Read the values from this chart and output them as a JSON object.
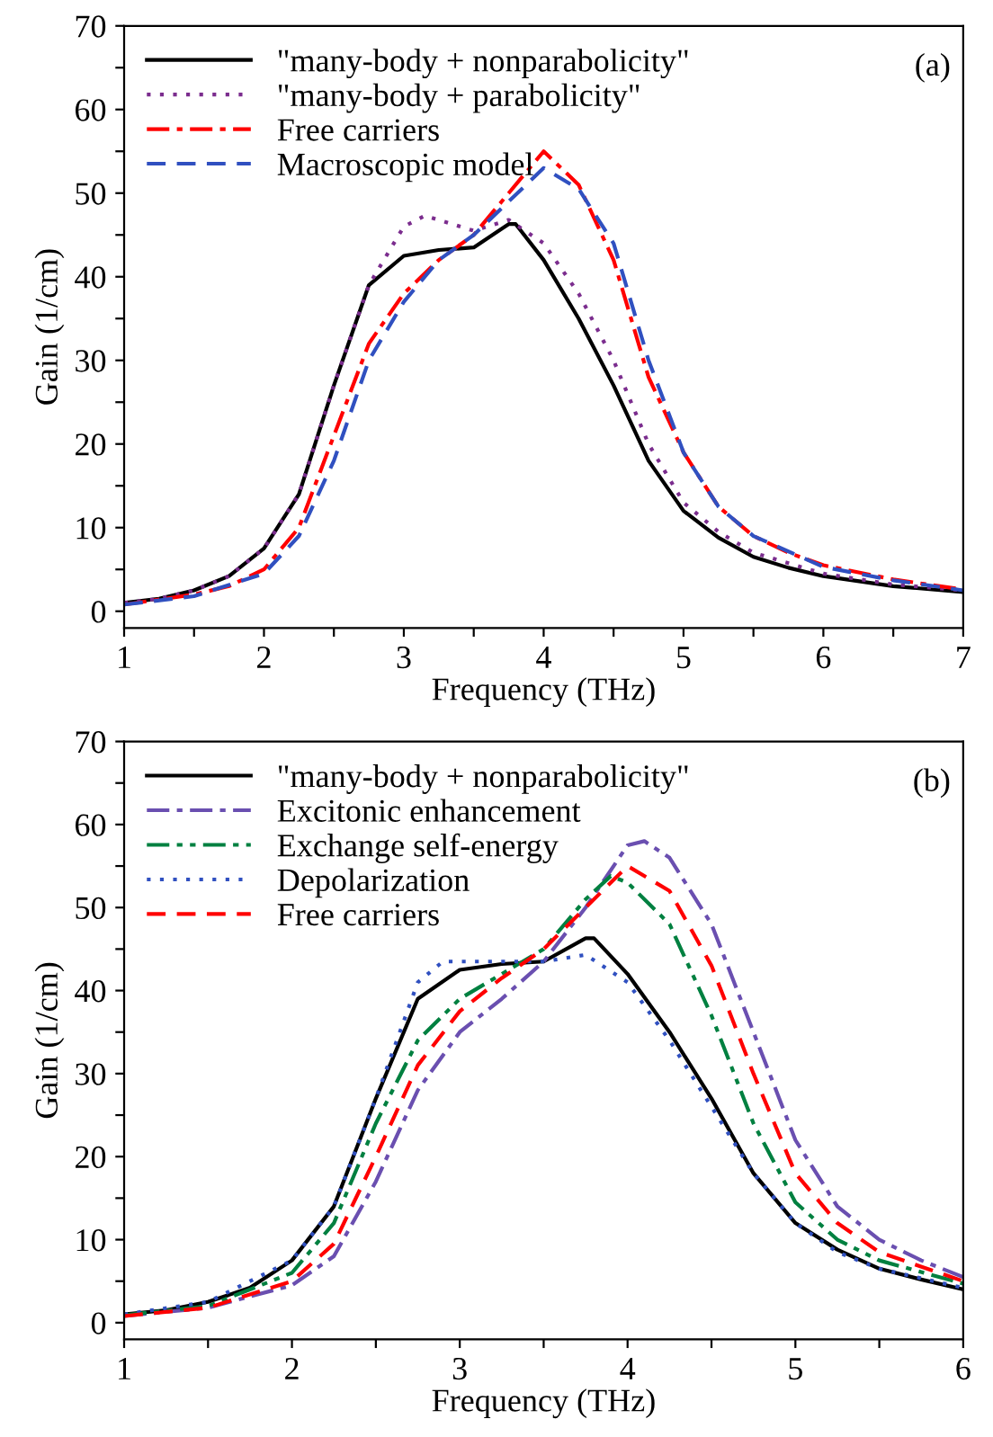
{
  "chart_data": [
    {
      "type": "line",
      "xlabel": "Frequency (THz)",
      "ylabel": "Gain (1/cm)",
      "annotations": [
        "(a)"
      ],
      "legend": "top left",
      "grid": false,
      "xlim": [
        1,
        7
      ],
      "xticks": [
        1,
        {
          "value": 1.5,
          "label": null
        },
        2,
        {
          "value": 2.5,
          "label": null
        },
        3,
        {
          "value": 3.5,
          "label": null
        },
        4,
        {
          "value": 4.5,
          "label": null
        },
        5,
        {
          "value": 5.5,
          "label": null
        },
        6,
        {
          "value": 6.5,
          "label": null
        },
        7
      ],
      "ylim": [
        -2,
        70
      ],
      "yticks": [
        0,
        {
          "value": 5,
          "label": null
        },
        10,
        {
          "value": 15,
          "label": null
        },
        20,
        {
          "value": 25,
          "label": null
        },
        30,
        {
          "value": 35,
          "label": null
        },
        40,
        {
          "value": 45,
          "label": null
        },
        50,
        {
          "value": 55,
          "label": null
        },
        60,
        {
          "value": 65,
          "label": null
        },
        70
      ],
      "series": [
        {
          "name": "\"many-body + nonparabolicity\"",
          "color": "#000000",
          "line_style": "solid",
          "x": [
            1,
            1.25,
            1.5,
            1.75,
            2,
            2.25,
            2.5,
            2.75,
            3,
            3.25,
            3.5,
            3.75,
            3.8,
            4,
            4.25,
            4.5,
            4.75,
            5,
            5.25,
            5.5,
            5.75,
            6,
            6.5,
            7
          ],
          "values": [
            1.0,
            1.5,
            2.5,
            4.2,
            7.5,
            14,
            27,
            39,
            42.5,
            43.2,
            43.5,
            46.3,
            46.3,
            42,
            35,
            27,
            18,
            12,
            8.8,
            6.5,
            5.2,
            4.2,
            3.0,
            2.3
          ]
        },
        {
          "name": "\"many-body + parabolicity\"",
          "color": "#7b2d8e",
          "line_style": "dotted",
          "x": [
            1,
            1.25,
            1.5,
            1.75,
            2,
            2.25,
            2.5,
            2.75,
            3,
            3.15,
            3.5,
            3.75,
            4,
            4.25,
            4.5,
            4.75,
            5,
            5.25,
            5.5,
            6,
            6.5,
            7
          ],
          "values": [
            1.0,
            1.5,
            2.5,
            4.2,
            7.5,
            14,
            27,
            39,
            46,
            47.3,
            45.5,
            46.8,
            44,
            38,
            30,
            20,
            13,
            9.5,
            7,
            4.5,
            3.2,
            2.5
          ]
        },
        {
          "name": "Free carriers",
          "color": "#ff0000",
          "line_style": "dashdot",
          "x": [
            1,
            1.5,
            1.75,
            2,
            2.25,
            2.5,
            2.75,
            3,
            3.25,
            3.5,
            3.75,
            4,
            4.25,
            4.5,
            4.75,
            5,
            5.25,
            5.5,
            5.75,
            6,
            6.5,
            7
          ],
          "values": [
            0.8,
            2,
            3,
            5,
            10,
            21,
            32,
            38,
            42,
            45,
            50,
            55,
            51,
            42,
            28,
            19,
            12.5,
            9,
            7,
            5.5,
            3.8,
            2.6
          ]
        },
        {
          "name": "Macroscopic model",
          "color": "#3050c0",
          "line_style": "dashed",
          "x": [
            1,
            1.5,
            2,
            2.25,
            2.5,
            2.75,
            3,
            3.25,
            3.5,
            3.75,
            4,
            4.25,
            4.5,
            4.75,
            5,
            5.25,
            5.5,
            6,
            6.5,
            7
          ],
          "values": [
            0.8,
            1.8,
            4.5,
            9,
            18,
            30,
            37,
            42,
            45,
            49,
            53,
            50.5,
            44,
            30,
            19,
            12.5,
            9,
            5.3,
            3.7,
            2.5
          ]
        }
      ]
    },
    {
      "type": "line",
      "xlabel": "Frequency (THz)",
      "ylabel": "Gain (1/cm)",
      "annotations": [
        "(b)"
      ],
      "legend": "top left",
      "grid": false,
      "xlim": [
        1,
        6
      ],
      "xticks": [
        1,
        {
          "value": 1.5,
          "label": null
        },
        2,
        {
          "value": 2.5,
          "label": null
        },
        3,
        {
          "value": 3.5,
          "label": null
        },
        4,
        {
          "value": 4.5,
          "label": null
        },
        5,
        {
          "value": 5.5,
          "label": null
        },
        6
      ],
      "ylim": [
        -2,
        70
      ],
      "yticks": [
        0,
        {
          "value": 5,
          "label": null
        },
        10,
        {
          "value": 15,
          "label": null
        },
        20,
        {
          "value": 25,
          "label": null
        },
        30,
        {
          "value": 35,
          "label": null
        },
        40,
        {
          "value": 45,
          "label": null
        },
        50,
        {
          "value": 55,
          "label": null
        },
        60,
        {
          "value": 65,
          "label": null
        },
        70
      ],
      "series": [
        {
          "name": "\"many-body + nonparabolicity\"",
          "color": "#000000",
          "line_style": "solid",
          "x": [
            1,
            1.25,
            1.5,
            1.75,
            2,
            2.25,
            2.5,
            2.75,
            3,
            3.25,
            3.5,
            3.75,
            3.8,
            4,
            4.25,
            4.5,
            4.75,
            5,
            5.25,
            5.5,
            5.75,
            6
          ],
          "values": [
            1.0,
            1.5,
            2.5,
            4.2,
            7.5,
            14,
            27,
            39,
            42.5,
            43.2,
            43.5,
            46.3,
            46.3,
            42,
            35,
            27,
            18,
            12,
            8.8,
            6.5,
            5.2,
            4.0
          ]
        },
        {
          "name": "Excitonic enhancement",
          "color": "#6a4fb0",
          "line_style": "dashdot",
          "x": [
            1,
            1.5,
            2,
            2.25,
            2.5,
            2.75,
            3,
            3.25,
            3.5,
            3.75,
            4,
            4.1,
            4.25,
            4.5,
            4.75,
            5,
            5.25,
            5.5,
            5.75,
            6
          ],
          "values": [
            0.8,
            1.8,
            4.5,
            8,
            17,
            28,
            35,
            39,
            43.5,
            50,
            57.5,
            58,
            56,
            48,
            35,
            22,
            14,
            10,
            7.5,
            5.5
          ]
        },
        {
          "name": "Exchange self-energy",
          "color": "#008040",
          "line_style": "dashdotdot",
          "x": [
            1,
            1.5,
            2,
            2.25,
            2.5,
            2.75,
            3,
            3.25,
            3.5,
            3.75,
            3.9,
            4,
            4.25,
            4.5,
            4.75,
            5,
            5.25,
            5.5,
            6
          ],
          "values": [
            0.9,
            2,
            6,
            12,
            24,
            34,
            39,
            42,
            45,
            51,
            53.8,
            53,
            48,
            37,
            24,
            14.5,
            10,
            7.5,
            4.7
          ]
        },
        {
          "name": "Depolarization",
          "color": "#3050c0",
          "line_style": "dotted",
          "x": [
            1,
            1.5,
            2,
            2.25,
            2.5,
            2.75,
            2.9,
            3.25,
            3.5,
            3.75,
            4,
            4.25,
            4.5,
            4.75,
            5,
            5.25,
            5.5,
            6
          ],
          "values": [
            1,
            2.5,
            7.5,
            14,
            27,
            41,
            43.5,
            43.5,
            43.5,
            44.3,
            41,
            34,
            26,
            18,
            12,
            8.5,
            6.5,
            4.2
          ]
        },
        {
          "name": "Free carriers",
          "color": "#ff0000",
          "line_style": "dashed",
          "x": [
            1,
            1.5,
            2,
            2.25,
            2.5,
            2.75,
            3,
            3.25,
            3.5,
            3.75,
            4,
            4.25,
            4.5,
            4.75,
            5,
            5.25,
            5.5,
            6
          ],
          "values": [
            0.8,
            1.8,
            5,
            9.5,
            20,
            31,
            37.5,
            41.5,
            45,
            50,
            55,
            52,
            43,
            30,
            18,
            12,
            8.5,
            5
          ]
        }
      ]
    }
  ]
}
